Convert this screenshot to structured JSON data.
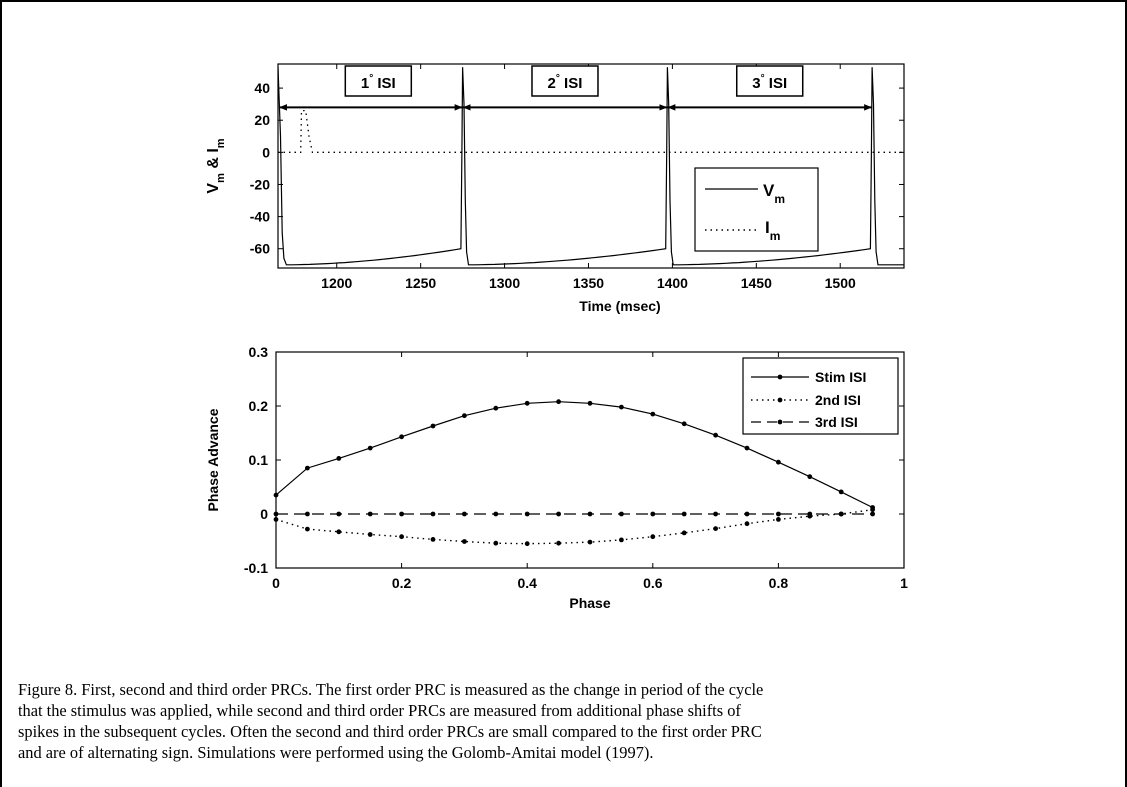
{
  "top_chart": {
    "ylabel_parts": [
      "V",
      "m",
      " & I",
      "m"
    ],
    "xlabel": "Time (msec)",
    "xticks": [
      "1200",
      "1250",
      "1300",
      "1350",
      "1400",
      "1450",
      "1500"
    ],
    "yticks": [
      "40",
      "20",
      "0",
      "-20",
      "-40",
      "-60"
    ],
    "legend": [
      {
        "style": "solid",
        "main": "V",
        "sub": "m"
      },
      {
        "style": "dotted",
        "main": "I",
        "sub": "m"
      }
    ],
    "isi_labels": [
      {
        "pre": "1",
        "post": " ISI"
      },
      {
        "pre": "2",
        "post": " ISI"
      },
      {
        "pre": "3",
        "post": " ISI"
      }
    ],
    "degree_mark": "°"
  },
  "chart_data": [
    {
      "type": "line",
      "title": "",
      "xlabel": "Time (msec)",
      "ylabel": "Vm & Im",
      "xlim": [
        1165,
        1538
      ],
      "ylim": [
        -72,
        55
      ],
      "spike_times": [
        1275,
        1397,
        1519
      ],
      "spike_peak": 53,
      "resting_potential": -70,
      "threshold_potential": -60,
      "stimulus": {
        "time": 1179,
        "amplitude": 26,
        "duration": 6
      },
      "isi_spans": [
        [
          1165,
          1275
        ],
        [
          1275,
          1397
        ],
        [
          1397,
          1519
        ]
      ],
      "series": [
        {
          "name": "Vm",
          "style": "solid"
        },
        {
          "name": "Im",
          "style": "dotted",
          "x": [
            1165,
            1178.5,
            1179,
            1181.5,
            1183.5,
            1185.5,
            1538
          ],
          "y": [
            0,
            0,
            26,
            26,
            10,
            0,
            0
          ]
        }
      ],
      "legend_position": "lower-right"
    },
    {
      "type": "line",
      "title": "",
      "xlabel": "Phase",
      "ylabel": "Phase Advance",
      "xlim": [
        0,
        1
      ],
      "ylim": [
        -0.1,
        0.3
      ],
      "xticks": [
        "0",
        "0.2",
        "0.4",
        "0.6",
        "0.8",
        "1"
      ],
      "yticks": [
        "0.3",
        "0.2",
        "0.1",
        "0",
        "-0.1"
      ],
      "legend_position": "top-right",
      "x": [
        0,
        0.05,
        0.1,
        0.15,
        0.2,
        0.25,
        0.3,
        0.35,
        0.4,
        0.45,
        0.5,
        0.55,
        0.6,
        0.65,
        0.7,
        0.75,
        0.8,
        0.85,
        0.9,
        0.95
      ],
      "series": [
        {
          "name": "Stim ISI",
          "style": "solid",
          "values": [
            0.035,
            0.085,
            0.103,
            0.122,
            0.143,
            0.163,
            0.182,
            0.196,
            0.205,
            0.208,
            0.205,
            0.198,
            0.185,
            0.167,
            0.146,
            0.122,
            0.096,
            0.069,
            0.041,
            0.012
          ]
        },
        {
          "name": "2nd ISI",
          "style": "dotted",
          "values": [
            -0.01,
            -0.028,
            -0.033,
            -0.038,
            -0.042,
            -0.047,
            -0.051,
            -0.054,
            -0.055,
            -0.054,
            -0.052,
            -0.048,
            -0.042,
            -0.035,
            -0.027,
            -0.018,
            -0.01,
            -0.004,
            0.0,
            0.008
          ]
        },
        {
          "name": "3rd ISI",
          "style": "dashed",
          "values": [
            0,
            0,
            0,
            0,
            0,
            0,
            0,
            0,
            0,
            0,
            0,
            0,
            0,
            0,
            0,
            0,
            0,
            0,
            0,
            0
          ]
        }
      ]
    }
  ],
  "caption": {
    "lines": [
      "Figure 8.  First, second and third order PRCs.  The first order PRC is measured as the change in period of the cycle",
      "that the stimulus was applied, while second and third order PRCs are measured from additional phase shifts of",
      "spikes in the subsequent cycles.  Often the second and third order PRCs are small compared to the first order PRC",
      "and are of alternating sign.  Simulations were performed using the Golomb-Amitai model (1997)."
    ]
  }
}
